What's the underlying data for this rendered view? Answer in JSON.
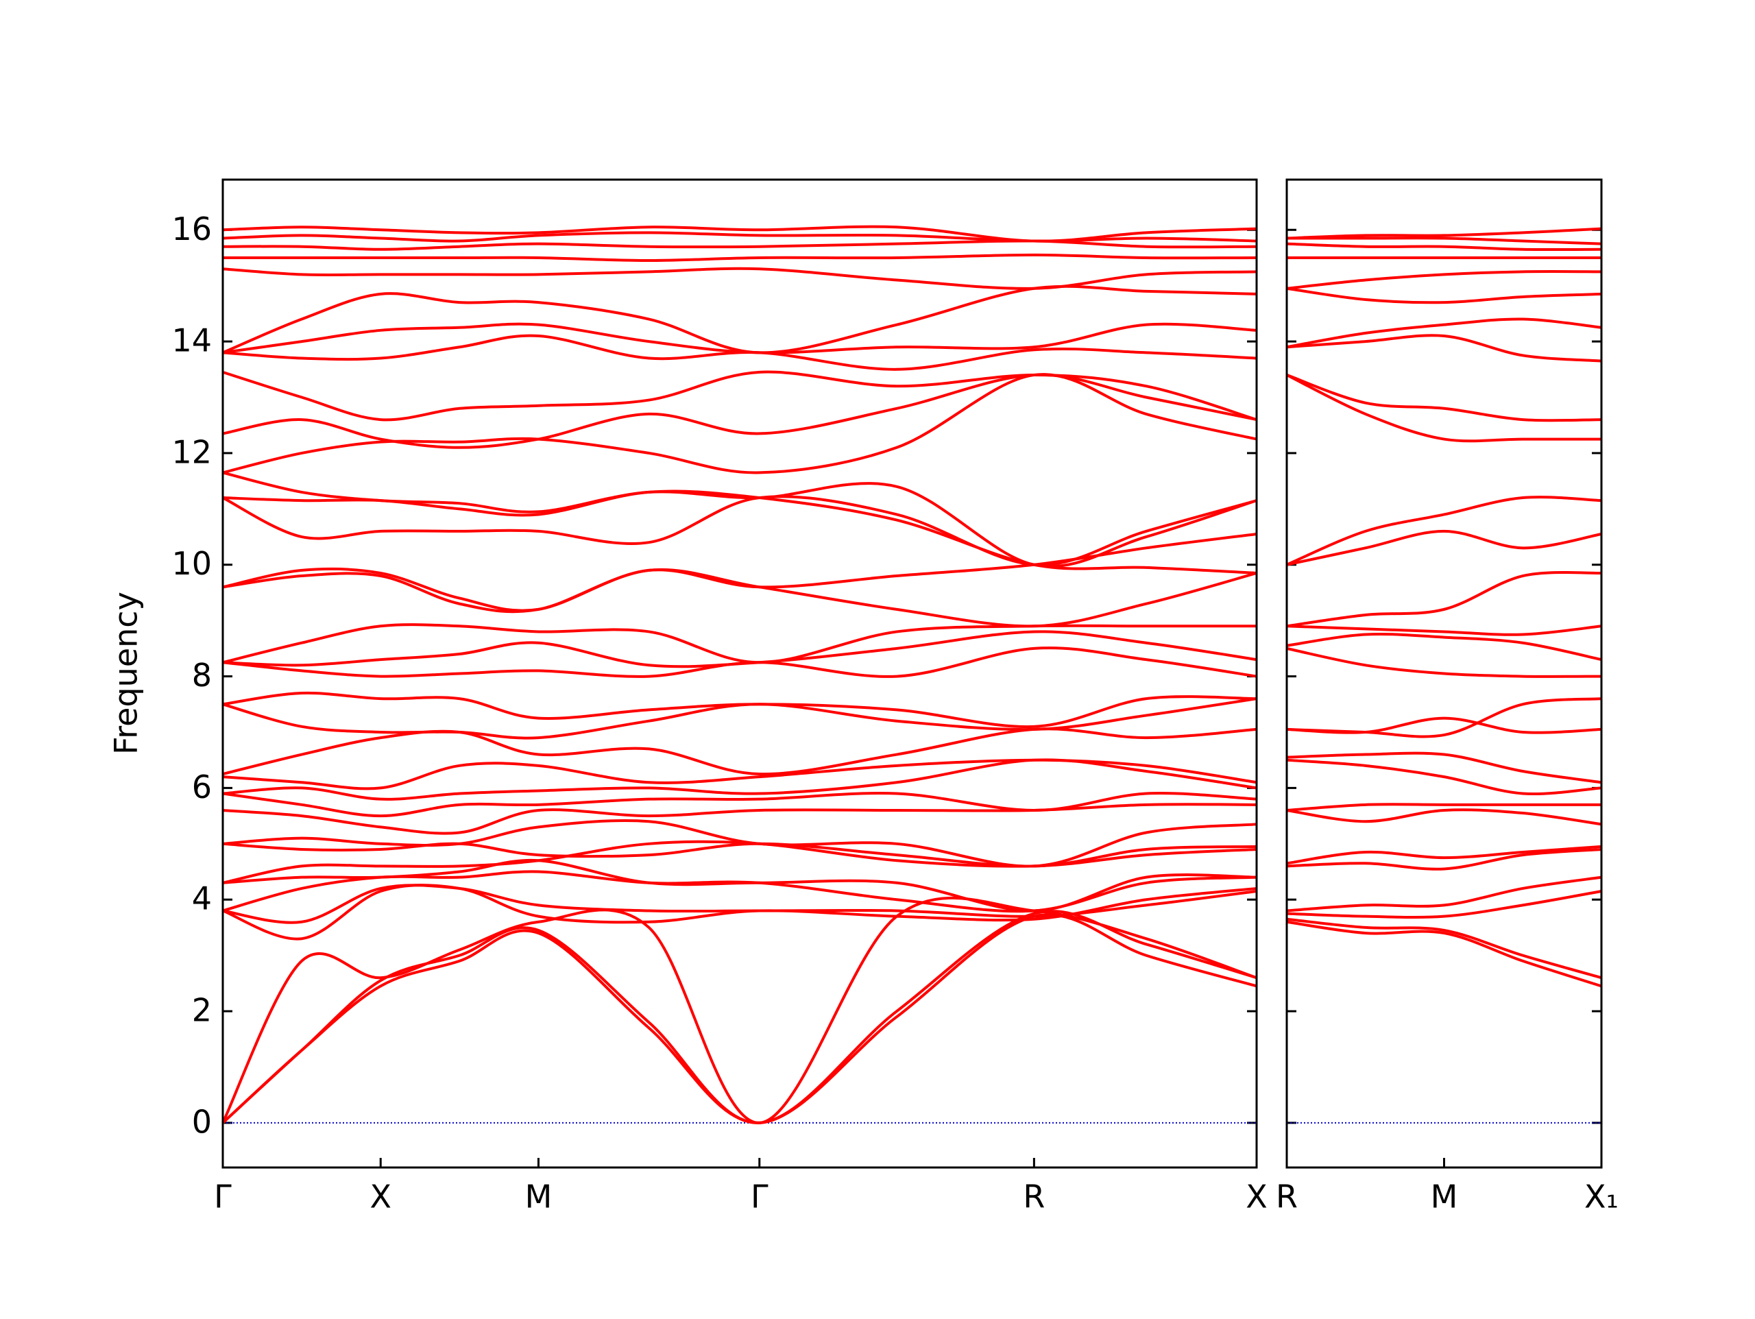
{
  "chart_data": [
    {
      "type": "line",
      "ylabel": "Frequency",
      "color": "#ff0000",
      "line_width": 4,
      "x": [
        0,
        0.5,
        1,
        1.5,
        2,
        2.7,
        3.4,
        4.27,
        5.14,
        5.85,
        6.55
      ],
      "xlim": [
        0,
        6.55
      ],
      "xticks": [
        {
          "value": 0,
          "label": "Γ"
        },
        {
          "value": 1,
          "label": "X"
        },
        {
          "value": 2,
          "label": "M"
        },
        {
          "value": 3.4,
          "label": "Γ"
        },
        {
          "value": 5.14,
          "label": "R"
        },
        {
          "value": 6.55,
          "label": "X"
        }
      ],
      "ylim": [
        -0.8,
        16.9
      ],
      "yticks": [
        0,
        2,
        4,
        6,
        8,
        10,
        12,
        14,
        16
      ],
      "show_ytick_labels": true,
      "hline": 0,
      "hline_color": "#0000cc",
      "series": [
        {
          "values": [
            0,
            1.3,
            2.45,
            2.9,
            3.4,
            1.7,
            0,
            1.9,
            3.7,
            3.0,
            2.45
          ]
        },
        {
          "values": [
            0,
            1.3,
            2.55,
            3.0,
            3.45,
            1.8,
            0,
            2.0,
            3.75,
            3.2,
            2.6
          ]
        },
        {
          "values": [
            0,
            2.9,
            2.6,
            3.1,
            3.6,
            3.5,
            0,
            3.7,
            3.8,
            3.3,
            2.6
          ]
        },
        {
          "values": [
            3.8,
            3.3,
            4.15,
            4.2,
            3.7,
            3.6,
            3.8,
            3.7,
            3.65,
            4.0,
            4.2
          ]
        },
        {
          "values": [
            3.8,
            3.6,
            4.2,
            4.2,
            3.9,
            3.8,
            3.8,
            3.8,
            3.7,
            3.9,
            4.15
          ]
        },
        {
          "values": [
            3.8,
            4.2,
            4.4,
            4.4,
            4.5,
            4.3,
            4.3,
            4.0,
            3.8,
            4.3,
            4.4
          ]
        },
        {
          "values": [
            4.3,
            4.4,
            4.4,
            4.5,
            4.7,
            4.3,
            4.3,
            4.3,
            3.8,
            4.4,
            4.4
          ]
        },
        {
          "values": [
            4.3,
            4.6,
            4.6,
            4.6,
            4.7,
            5.0,
            5.0,
            4.7,
            4.6,
            4.8,
            4.9
          ]
        },
        {
          "values": [
            5.0,
            4.9,
            4.9,
            5.0,
            4.8,
            4.8,
            5.0,
            4.8,
            4.6,
            4.9,
            4.95
          ]
        },
        {
          "values": [
            5.0,
            5.1,
            5.0,
            5.0,
            5.3,
            5.4,
            5.0,
            5.0,
            4.6,
            5.2,
            5.35
          ]
        },
        {
          "values": [
            5.6,
            5.5,
            5.3,
            5.2,
            5.6,
            5.5,
            5.6,
            5.6,
            5.6,
            5.7,
            5.7
          ]
        },
        {
          "values": [
            5.9,
            5.7,
            5.5,
            5.7,
            5.7,
            5.8,
            5.8,
            5.9,
            5.6,
            5.9,
            5.8
          ]
        },
        {
          "values": [
            5.9,
            6.0,
            5.8,
            5.9,
            5.95,
            6.0,
            5.9,
            6.1,
            6.5,
            6.3,
            6.0
          ]
        },
        {
          "values": [
            6.2,
            6.1,
            6.0,
            6.4,
            6.4,
            6.1,
            6.2,
            6.4,
            6.5,
            6.4,
            6.1
          ]
        },
        {
          "values": [
            6.25,
            6.6,
            6.9,
            7.0,
            6.6,
            6.7,
            6.25,
            6.6,
            7.05,
            6.9,
            7.05
          ]
        },
        {
          "values": [
            7.5,
            7.1,
            7.0,
            7.0,
            6.9,
            7.2,
            7.5,
            7.2,
            7.05,
            7.3,
            7.6
          ]
        },
        {
          "values": [
            7.5,
            7.7,
            7.6,
            7.6,
            7.25,
            7.4,
            7.5,
            7.4,
            7.1,
            7.6,
            7.6
          ]
        },
        {
          "values": [
            8.25,
            8.1,
            8.0,
            8.05,
            8.1,
            8.0,
            8.25,
            8.0,
            8.5,
            8.3,
            8.0
          ]
        },
        {
          "values": [
            8.25,
            8.2,
            8.3,
            8.4,
            8.6,
            8.2,
            8.25,
            8.5,
            8.8,
            8.6,
            8.3
          ]
        },
        {
          "values": [
            8.25,
            8.6,
            8.9,
            8.9,
            8.8,
            8.8,
            8.25,
            8.8,
            8.9,
            8.9,
            8.9
          ]
        },
        {
          "values": [
            9.6,
            9.8,
            9.8,
            9.3,
            9.2,
            9.9,
            9.6,
            9.2,
            8.9,
            9.3,
            9.85
          ]
        },
        {
          "values": [
            9.6,
            9.9,
            9.85,
            9.4,
            9.2,
            9.9,
            9.6,
            9.8,
            10.0,
            10.3,
            10.55
          ]
        },
        {
          "values": [
            11.2,
            10.5,
            10.6,
            10.6,
            10.6,
            10.4,
            11.2,
            10.9,
            10.0,
            10.6,
            11.15
          ]
        },
        {
          "values": [
            11.2,
            11.15,
            11.15,
            11.0,
            10.9,
            11.3,
            11.2,
            10.8,
            10.0,
            9.95,
            9.85
          ]
        },
        {
          "values": [
            11.65,
            11.3,
            11.15,
            11.1,
            10.95,
            11.3,
            11.2,
            11.4,
            10.0,
            10.5,
            11.15
          ]
        },
        {
          "values": [
            11.65,
            12.0,
            12.2,
            12.2,
            12.25,
            12.0,
            11.65,
            12.1,
            13.4,
            12.7,
            12.25
          ]
        },
        {
          "values": [
            12.35,
            12.6,
            12.25,
            12.1,
            12.25,
            12.7,
            12.35,
            12.8,
            13.4,
            13.0,
            12.6
          ]
        },
        {
          "values": [
            13.45,
            13.0,
            12.6,
            12.8,
            12.85,
            12.95,
            13.45,
            13.2,
            13.4,
            13.2,
            12.6
          ]
        },
        {
          "values": [
            13.8,
            13.7,
            13.7,
            13.9,
            14.1,
            13.7,
            13.8,
            13.5,
            13.85,
            13.8,
            13.7
          ]
        },
        {
          "values": [
            13.8,
            14.0,
            14.2,
            14.25,
            14.3,
            14.0,
            13.8,
            13.9,
            13.9,
            14.3,
            14.2
          ]
        },
        {
          "values": [
            13.8,
            14.4,
            14.85,
            14.7,
            14.7,
            14.4,
            13.8,
            14.3,
            14.95,
            14.9,
            14.85
          ]
        },
        {
          "values": [
            15.3,
            15.2,
            15.2,
            15.2,
            15.2,
            15.25,
            15.3,
            15.1,
            14.95,
            15.2,
            15.25
          ]
        },
        {
          "values": [
            15.5,
            15.5,
            15.5,
            15.5,
            15.5,
            15.45,
            15.5,
            15.5,
            15.55,
            15.5,
            15.5
          ]
        },
        {
          "values": [
            15.7,
            15.7,
            15.65,
            15.7,
            15.75,
            15.7,
            15.7,
            15.75,
            15.8,
            15.7,
            15.7
          ]
        },
        {
          "values": [
            15.85,
            15.9,
            15.85,
            15.8,
            15.9,
            15.95,
            15.9,
            15.9,
            15.8,
            15.85,
            15.8
          ]
        },
        {
          "values": [
            16.0,
            16.05,
            16.0,
            15.95,
            15.95,
            16.05,
            16.0,
            16.05,
            15.8,
            15.95,
            16.02
          ]
        }
      ]
    },
    {
      "type": "line",
      "color": "#ff0000",
      "line_width": 4,
      "x": [
        0,
        0.5,
        1,
        1.5,
        2
      ],
      "xlim": [
        0,
        2
      ],
      "xticks": [
        {
          "value": 0,
          "label": "R"
        },
        {
          "value": 1,
          "label": "M"
        },
        {
          "value": 2,
          "label": "X₁"
        }
      ],
      "ylim": [
        -0.8,
        16.9
      ],
      "yticks": [
        0,
        2,
        4,
        6,
        8,
        10,
        12,
        14,
        16
      ],
      "show_ytick_labels": false,
      "hline": 0,
      "hline_color": "#0000cc",
      "series": [
        {
          "values": [
            3.6,
            3.4,
            3.4,
            2.9,
            2.45
          ]
        },
        {
          "values": [
            3.65,
            3.5,
            3.45,
            3.0,
            2.6
          ]
        },
        {
          "values": [
            3.75,
            3.7,
            3.7,
            3.9,
            4.15
          ]
        },
        {
          "values": [
            3.8,
            3.9,
            3.9,
            4.2,
            4.4
          ]
        },
        {
          "values": [
            4.6,
            4.65,
            4.55,
            4.8,
            4.9
          ]
        },
        {
          "values": [
            4.65,
            4.85,
            4.75,
            4.85,
            4.95
          ]
        },
        {
          "values": [
            5.6,
            5.4,
            5.6,
            5.55,
            5.35
          ]
        },
        {
          "values": [
            5.6,
            5.7,
            5.7,
            5.7,
            5.7
          ]
        },
        {
          "values": [
            6.5,
            6.4,
            6.2,
            5.9,
            6.0
          ]
        },
        {
          "values": [
            6.55,
            6.6,
            6.6,
            6.3,
            6.1
          ]
        },
        {
          "values": [
            7.05,
            7.0,
            7.25,
            7.0,
            7.05
          ]
        },
        {
          "values": [
            7.05,
            7.0,
            6.95,
            7.5,
            7.6
          ]
        },
        {
          "values": [
            8.5,
            8.2,
            8.05,
            8.0,
            8.0
          ]
        },
        {
          "values": [
            8.55,
            8.75,
            8.7,
            8.6,
            8.3
          ]
        },
        {
          "values": [
            8.9,
            8.85,
            8.8,
            8.75,
            8.9
          ]
        },
        {
          "values": [
            8.9,
            9.1,
            9.2,
            9.8,
            9.85
          ]
        },
        {
          "values": [
            10.0,
            10.3,
            10.6,
            10.3,
            10.55
          ]
        },
        {
          "values": [
            10.0,
            10.6,
            10.9,
            11.2,
            11.15
          ]
        },
        {
          "values": [
            13.4,
            12.9,
            12.8,
            12.6,
            12.6
          ]
        },
        {
          "values": [
            13.4,
            12.7,
            12.25,
            12.25,
            12.25
          ]
        },
        {
          "values": [
            13.9,
            14.0,
            14.1,
            13.75,
            13.65
          ]
        },
        {
          "values": [
            13.9,
            14.15,
            14.3,
            14.4,
            14.25
          ]
        },
        {
          "values": [
            14.95,
            14.75,
            14.7,
            14.8,
            14.85
          ]
        },
        {
          "values": [
            14.95,
            15.1,
            15.2,
            15.25,
            15.25
          ]
        },
        {
          "values": [
            15.5,
            15.5,
            15.5,
            15.5,
            15.5
          ]
        },
        {
          "values": [
            15.75,
            15.7,
            15.7,
            15.65,
            15.65
          ]
        },
        {
          "values": [
            15.85,
            15.85,
            15.85,
            15.8,
            15.75
          ]
        },
        {
          "values": [
            15.85,
            15.9,
            15.9,
            15.95,
            16.02
          ]
        }
      ]
    }
  ]
}
